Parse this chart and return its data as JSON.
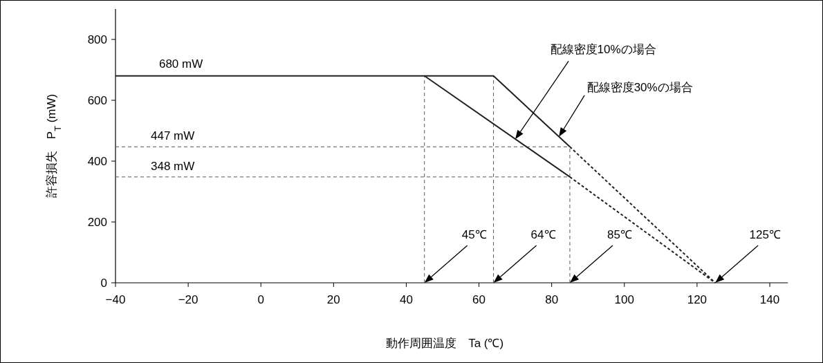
{
  "chart_data": {
    "type": "line",
    "xlabel": "動作周囲温度　Ta (℃)",
    "ylabel": "許容損失　P$_{T}$ (mW)",
    "xlim": [
      -40,
      145
    ],
    "ylim": [
      0,
      900
    ],
    "xticks": [
      {
        "value": -40,
        "label": "−40"
      },
      {
        "value": -20,
        "label": "−20"
      },
      0,
      20,
      40,
      60,
      80,
      100,
      120,
      140
    ],
    "yticks": [
      0,
      200,
      400,
      600,
      800
    ],
    "grid": false,
    "marker": "none",
    "series": [
      {
        "color": "#231f20",
        "x": [
          -40,
          45,
          85
        ],
        "values": [
          680,
          680,
          348
        ],
        "line_style": "solid"
      },
      {
        "color": "#231f20",
        "x": [
          45,
          64,
          85
        ],
        "values": [
          680,
          680,
          447
        ],
        "line_style": "solid"
      },
      {
        "color": "#231f20",
        "x": [
          85,
          125
        ],
        "values": [
          348,
          0
        ],
        "line_style": "dotted"
      },
      {
        "color": "#231f20",
        "x": [
          85,
          125
        ],
        "values": [
          447,
          0
        ],
        "line_style": "dotted"
      }
    ],
    "ref_lines": [
      {
        "axis": "y",
        "value": 447,
        "label": "447 mW",
        "color": "#555555",
        "line_style": "dashed"
      },
      {
        "axis": "y",
        "value": 348,
        "label": "348 mW",
        "color": "#555555",
        "line_style": "dashed"
      },
      {
        "axis": "x",
        "value": 45,
        "color": "#555555",
        "line_style": "dashed"
      },
      {
        "axis": "x",
        "value": 64,
        "color": "#555555",
        "line_style": "dashed"
      },
      {
        "axis": "x",
        "value": 85,
        "color": "#555555",
        "line_style": "dashed"
      }
    ],
    "annotations": [
      {
        "text": "680 mW",
        "x": -22,
        "y": 680
      },
      "配線密度10%の場合",
      "配線密度30%の場合",
      "45℃",
      "64℃",
      "85℃",
      "125℃"
    ]
  }
}
